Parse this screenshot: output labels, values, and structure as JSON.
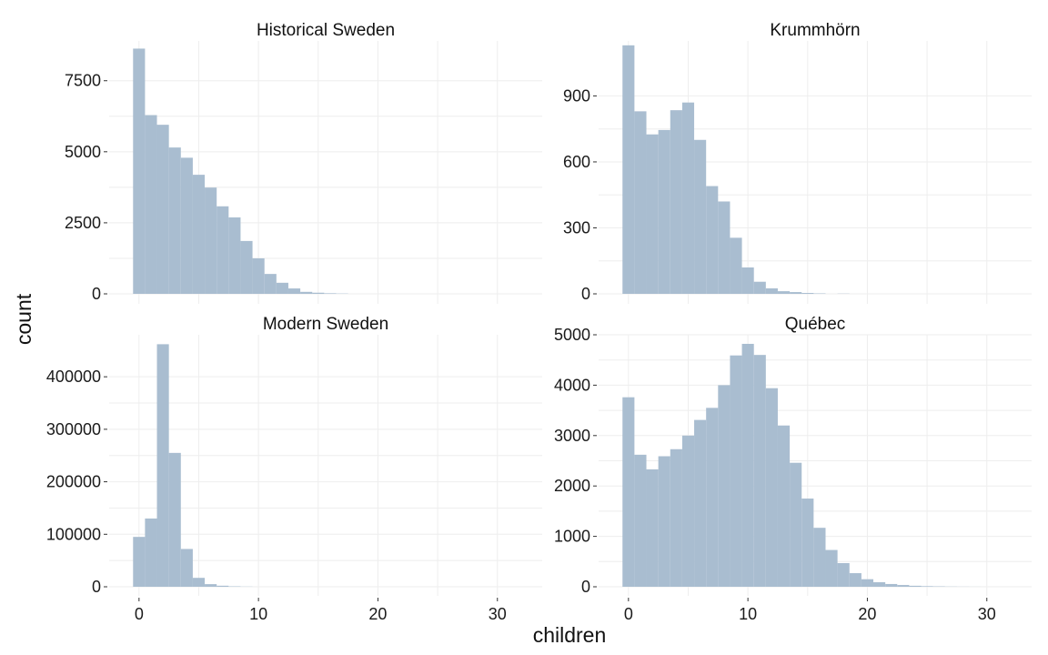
{
  "chart_data": {
    "type": "bar",
    "xlabel": "children",
    "ylabel": "count",
    "bar_color": "#a9bdd0",
    "grid": true,
    "x_ticks": [
      0,
      10,
      20,
      30
    ],
    "panels": [
      {
        "title": "Historical Sweden",
        "ylim": [
          0,
          8900
        ],
        "y_ticks": [
          0,
          2500,
          5000,
          7500
        ],
        "bin_start": 0,
        "bin_width": 1,
        "values": [
          8630,
          6290,
          5950,
          5150,
          4790,
          4190,
          3740,
          3080,
          2690,
          1860,
          1250,
          700,
          390,
          190,
          70,
          40,
          20,
          10
        ]
      },
      {
        "title": "Krummhörn",
        "ylim": [
          0,
          1150
        ],
        "y_ticks": [
          0,
          300,
          600,
          900
        ],
        "bin_start": 0,
        "bin_width": 1,
        "values": [
          1130,
          830,
          725,
          745,
          835,
          870,
          700,
          490,
          420,
          255,
          120,
          55,
          25,
          12,
          8,
          4,
          2,
          0,
          1
        ]
      },
      {
        "title": "Modern Sweden",
        "ylim": [
          0,
          480000
        ],
        "y_ticks": [
          0,
          100000,
          200000,
          300000,
          400000
        ],
        "bin_start": 0,
        "bin_width": 1,
        "values": [
          95000,
          130000,
          462000,
          255000,
          72000,
          17000,
          5000,
          2000,
          800,
          300
        ]
      },
      {
        "title": "Québec",
        "ylim": [
          0,
          5000
        ],
        "y_ticks": [
          0,
          1000,
          2000,
          3000,
          4000,
          5000
        ],
        "bin_start": 0,
        "bin_width": 1,
        "values": [
          3760,
          2620,
          2330,
          2590,
          2730,
          3000,
          3310,
          3550,
          4000,
          4590,
          4820,
          4600,
          3940,
          3200,
          2460,
          1750,
          1170,
          730,
          470,
          270,
          150,
          90,
          55,
          35,
          20,
          12,
          8,
          4,
          2,
          1
        ]
      }
    ]
  }
}
